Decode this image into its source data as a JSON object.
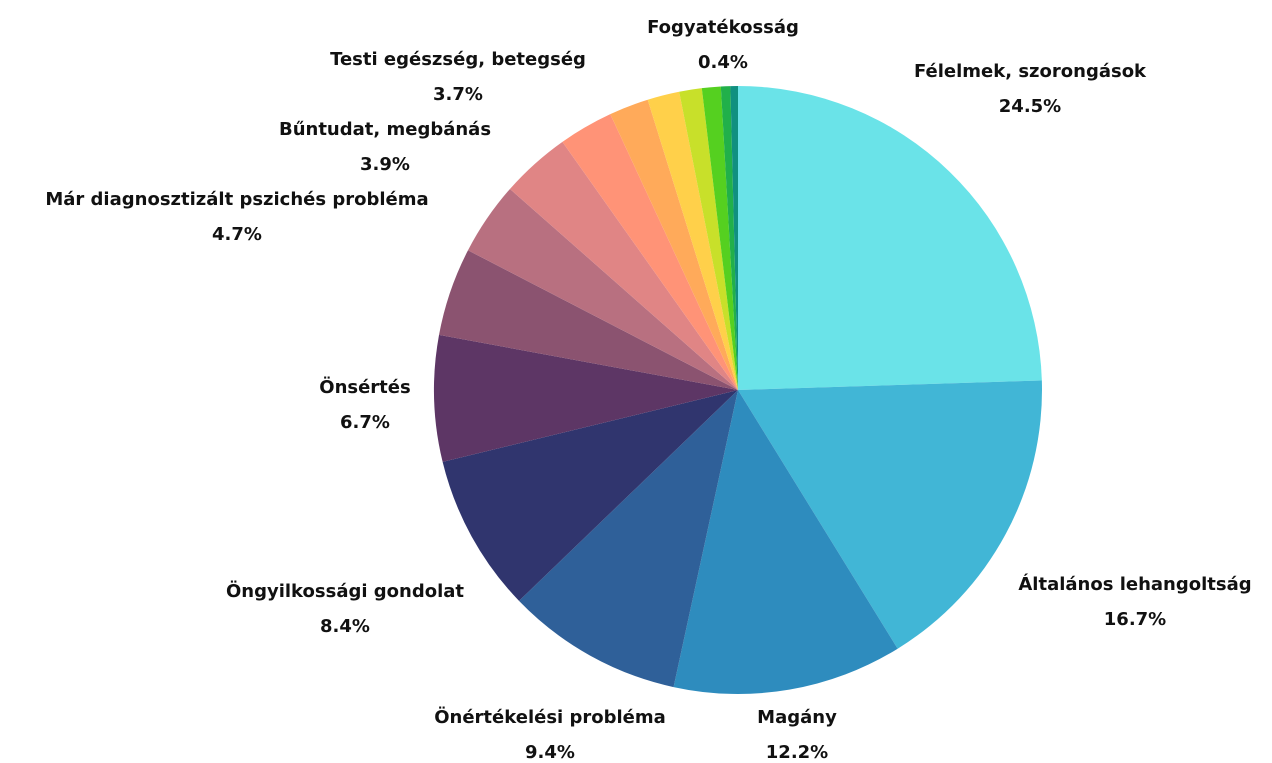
{
  "chart_data": {
    "type": "pie",
    "categories": [
      "Félelmek, szorongások",
      "Általános lehangoltság",
      "Magány",
      "Önértékelési probléma",
      "Öngyilkossági gondolat",
      "Önsértés",
      "Már diagnosztizált pszichés probléma",
      "Bűntudat, megbánás",
      "Testi egészség, betegség",
      null,
      null,
      null,
      null,
      null,
      null,
      "Fogyatékosság"
    ],
    "values": [
      24.5,
      16.7,
      12.2,
      9.4,
      8.4,
      6.7,
      4.7,
      3.9,
      3.7,
      2.9,
      2.1,
      1.7,
      1.2,
      1.0,
      0.5,
      0.4
    ],
    "value_labels": [
      "24.5%",
      "16.7%",
      "12.2%",
      "9.4%",
      "8.4%",
      "6.7%",
      "4.7%",
      "3.9%",
      "3.7%",
      null,
      null,
      null,
      null,
      null,
      null,
      "0.4%"
    ],
    "colors": [
      "#6ae3e8",
      "#41b6d6",
      "#2e8cbe",
      "#2f6099",
      "#30356e",
      "#5d3665",
      "#8b5370",
      "#b87080",
      "#e08585",
      "#ff9377",
      "#ffaa5a",
      "#ffd04a",
      "#c8e02a",
      "#55d020",
      "#21b04a",
      "#109080"
    ]
  }
}
